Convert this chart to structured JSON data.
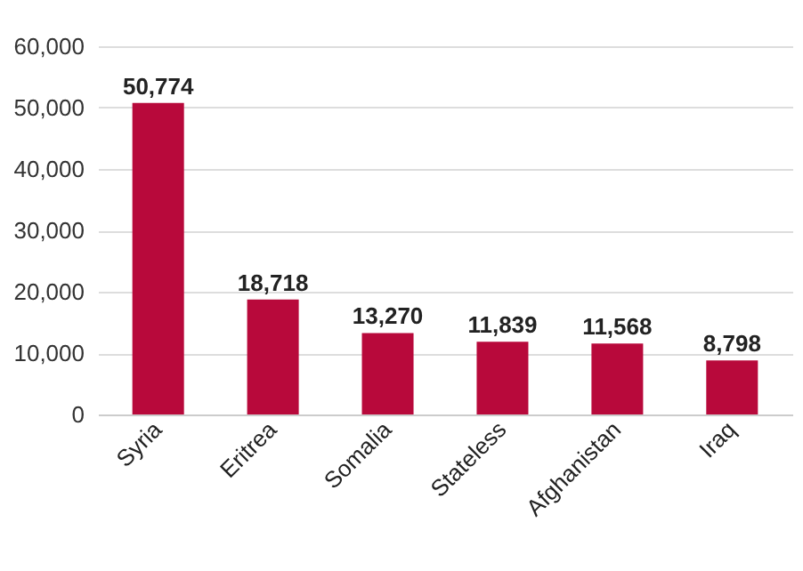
{
  "chart_data": {
    "type": "bar",
    "categories": [
      "Syria",
      "Eritrea",
      "Somalia",
      "Stateless",
      "Afghanistan",
      "Iraq"
    ],
    "values": [
      50774,
      18718,
      13270,
      11839,
      11568,
      8798
    ],
    "value_labels": [
      "50,774",
      "18,718",
      "13,270",
      "11,839",
      "11,568",
      "8,798"
    ],
    "color": "#b8093b",
    "ylim": [
      0,
      60000
    ],
    "yticks": [
      {
        "value": 0,
        "label": "0"
      },
      {
        "value": 10000,
        "label": "10,000"
      },
      {
        "value": 20000,
        "label": "20,000"
      },
      {
        "value": 30000,
        "label": "30,000"
      },
      {
        "value": 40000,
        "label": "40,000"
      },
      {
        "value": 50000,
        "label": "50,000"
      },
      {
        "value": 60000,
        "label": "60,000"
      }
    ],
    "grid": "y"
  }
}
